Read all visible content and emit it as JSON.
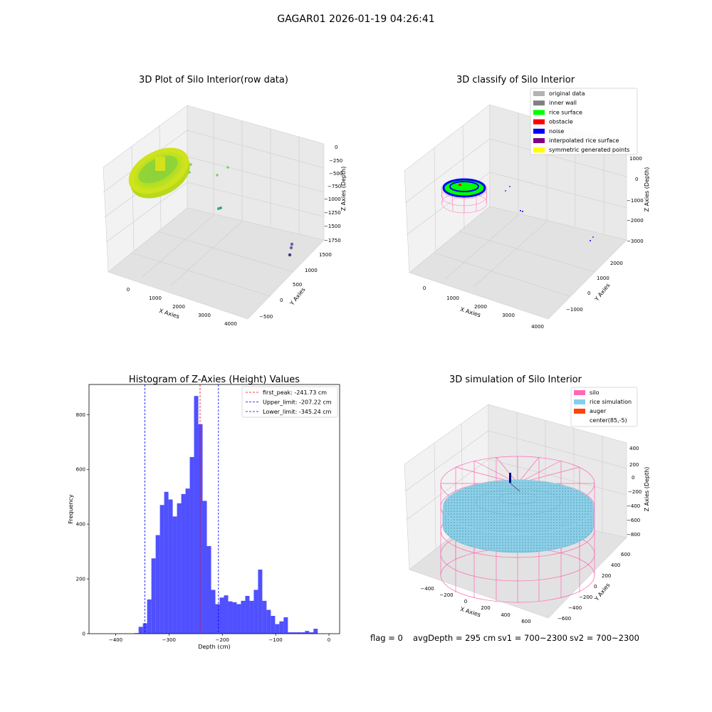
{
  "suptitle": "GAGAR01 2026-01-19 04:26:41",
  "footer": {
    "flag": "flag = 0",
    "avg": "avgDepth = 295 cm",
    "sv1": "sv1 = 700~2300",
    "sv2": "sv2 = 700~2300"
  },
  "chart_data": [
    {
      "type": "scatter",
      "projection": "3d",
      "title": "3D Plot of Silo Interior(row data)",
      "xlabel": "X Axies",
      "ylabel": "Y Axies",
      "zlabel": "Z Axies (Depth)",
      "xticks": [
        "0",
        "1000",
        "2000",
        "3000",
        "4000"
      ],
      "yticks": [
        "1500",
        "1000",
        "500",
        "0",
        "−500"
      ],
      "zticks": [
        "0",
        "−250",
        "−500",
        "−750",
        "−1000",
        "−1250",
        "−1500",
        "−1750"
      ],
      "colors": [
        "#c8e01e",
        "#7fd34e",
        "#3aa88c",
        "#6a5fa8",
        "#453781"
      ]
    },
    {
      "type": "scatter",
      "projection": "3d",
      "title": "3D classify of Silo Interior",
      "xlabel": "X Axies",
      "ylabel": "Y Axies",
      "zlabel": "Z Axies (Depth)",
      "xticks": [
        "0",
        "1000",
        "2000",
        "3000",
        "4000"
      ],
      "yticks": [
        "2000",
        "1000",
        "0",
        "−1000"
      ],
      "zticks": [
        "1000",
        "0",
        "−1000",
        "−2000",
        "−3000"
      ],
      "legend_position": "top-right",
      "legend": [
        {
          "name": "original data",
          "color": "#b3b3b3"
        },
        {
          "name": "inner wall",
          "color": "#808080"
        },
        {
          "name": "rice surface",
          "color": "#00ff00"
        },
        {
          "name": "obstacle",
          "color": "#ff0000"
        },
        {
          "name": "noise",
          "color": "#0000ff"
        },
        {
          "name": "interpolated rice surface",
          "color": "#800080"
        },
        {
          "name": "symmetric generated points",
          "color": "#ffff00"
        }
      ]
    },
    {
      "type": "bar",
      "title": "Histogram of Z-Axies (Height) Values",
      "xlabel": "Depth (cm)",
      "ylabel": "Frequency",
      "xlim": [
        -450,
        20
      ],
      "ylim": [
        0,
        910
      ],
      "xticks": [
        -400,
        -300,
        -200,
        -100,
        0
      ],
      "xtick_labels": [
        "−400",
        "−300",
        "−200",
        "−100",
        "0"
      ],
      "yticks": [
        0,
        200,
        400,
        600,
        800
      ],
      "bar_color": "#5050ff",
      "bin_start": -365,
      "bin_width": 8,
      "values": [
        2,
        25,
        38,
        125,
        275,
        360,
        470,
        518,
        490,
        428,
        476,
        510,
        530,
        645,
        868,
        765,
        485,
        320,
        160,
        108,
        132,
        140,
        118,
        115,
        108,
        120,
        138,
        120,
        160,
        234,
        120,
        87,
        65,
        35,
        45,
        60,
        5,
        5,
        5,
        5,
        10,
        5,
        18
      ],
      "lines": [
        {
          "label": "first_peak: -241.73 cm",
          "x": -241.73,
          "color": "#ff0000"
        },
        {
          "label": "Upper_limit: -207.22 cm",
          "x": -207.22,
          "color": "#0000ff"
        },
        {
          "label": "Lower_limit: -345.24 cm",
          "x": -345.24,
          "color": "#0000ff"
        }
      ],
      "legend_position": "top-right"
    },
    {
      "type": "scatter",
      "projection": "3d",
      "title": "3D simulation of Silo Interior",
      "xlabel": "X Axies",
      "ylabel": "Y Axies",
      "zlabel": "Z Axies (Depth)",
      "xticks": [
        "−400",
        "−200",
        "0",
        "200",
        "400",
        "600"
      ],
      "yticks": [
        "600",
        "400",
        "200",
        "0",
        "−200",
        "−400",
        "−600"
      ],
      "zticks": [
        "400",
        "200",
        "0",
        "−200",
        "−400",
        "−600",
        "−800"
      ],
      "legend_position": "top-right",
      "legend": [
        {
          "name": "silo",
          "color": "#ff69b4"
        },
        {
          "name": "rice simulation",
          "color": "#87ceeb"
        },
        {
          "name": "auger",
          "color": "#ff4500"
        },
        {
          "name": "center(85,-5)",
          "color": "#ffffff"
        }
      ]
    }
  ]
}
